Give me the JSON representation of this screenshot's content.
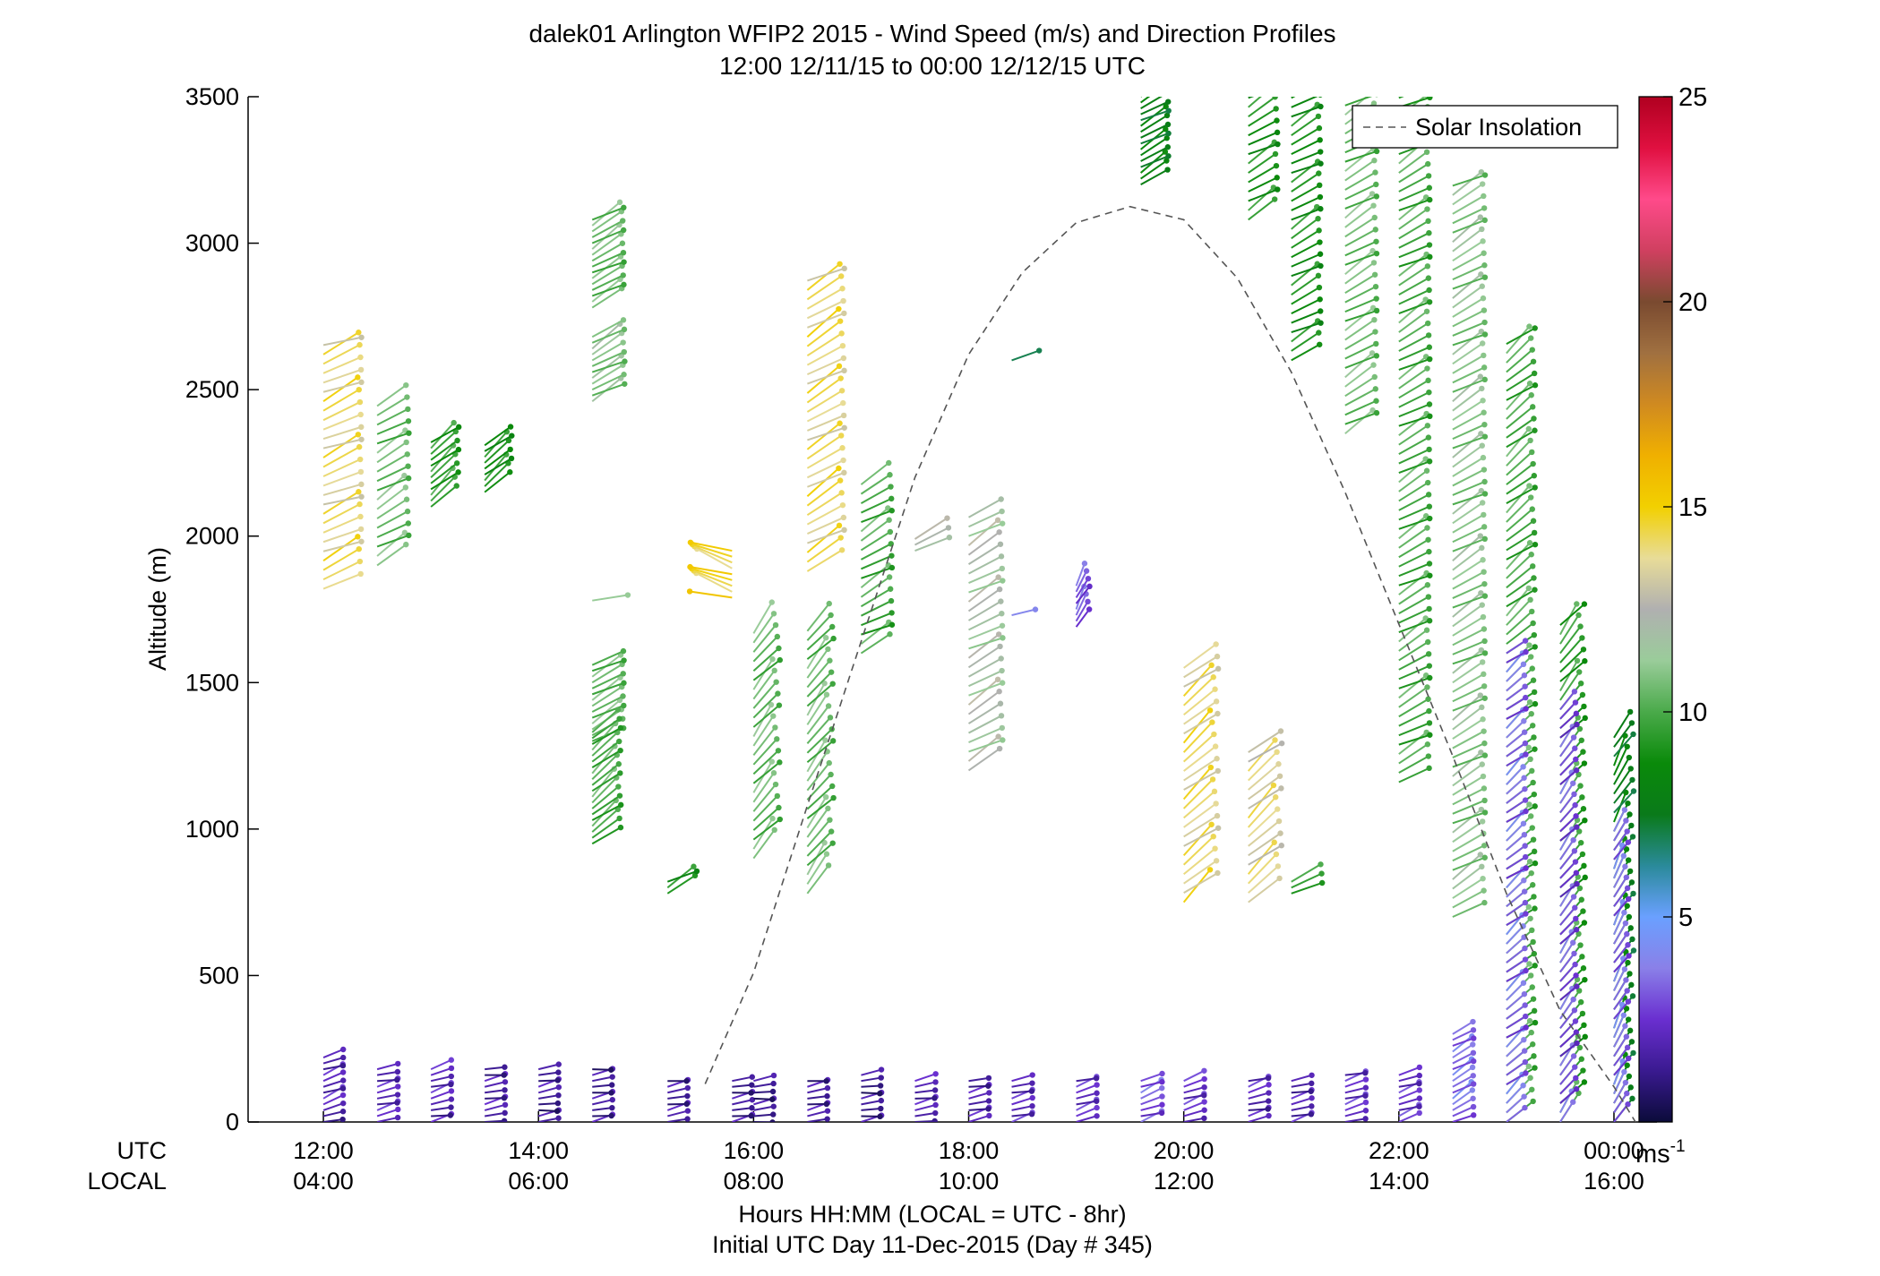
{
  "window": {
    "title_line1": "dalek01 Arlington WFIP2 2015 - Wind Speed (m/s) and Direction Profiles",
    "title_line2": "12:00 12/11/15 to 00:00 12/12/15  UTC"
  },
  "axes": {
    "ylabel": "Altitude (m)",
    "row_label_utc": "UTC",
    "row_label_local": "LOCAL",
    "xlabel": "Hours HH:MM  (LOCAL = UTC - 8hr)",
    "xsub": "Initial UTC Day 11-Dec-2015 (Day # 345)",
    "yticks": [
      "0",
      "500",
      "1000",
      "1500",
      "2000",
      "2500",
      "3000",
      "3500"
    ],
    "utc_ticks": [
      "12:00",
      "14:00",
      "16:00",
      "18:00",
      "20:00",
      "22:00",
      "00:00"
    ],
    "local_ticks": [
      "04:00",
      "06:00",
      "08:00",
      "10:00",
      "12:00",
      "14:00",
      "16:00"
    ]
  },
  "legend": {
    "label": "Solar Insolation"
  },
  "colorbar": {
    "ticks": [
      "5",
      "10",
      "15",
      "20",
      "25"
    ],
    "unit": "ms",
    "unit_sup": "-1"
  },
  "chart_data": {
    "type": "wind-barb-profile",
    "title": "dalek01 Arlington WFIP2 2015 - Wind Speed (m/s) and Direction Profiles",
    "subtitle": "12:00 12/11/15 to 00:00 12/12/15  UTC",
    "xlabel": "Hours HH:MM  (LOCAL = UTC - 8hr)",
    "ylabel": "Altitude (m)",
    "x_units": "hours UTC since 12:00 12/11/15",
    "xlim": [
      -0.7,
      12.4
    ],
    "ylim": [
      0,
      3500
    ],
    "colorbar_range": [
      0,
      25
    ],
    "colorbar_label": "ms-1",
    "colormap": [
      "#0b0b3a",
      "#3a1a90",
      "#6a2fd0",
      "#8a80e8",
      "#6aa0ff",
      "#2a8a9a",
      "#0a7a1a",
      "#0a8a0a",
      "#4aaa4a",
      "#9acc9a",
      "#b0b0b0",
      "#e8dc98",
      "#f2d000",
      "#f0b000",
      "#d08a20",
      "#a07040",
      "#7a4a30",
      "#d04060",
      "#ff4a8a",
      "#e01040",
      "#b00020"
    ],
    "solar_insolation": {
      "style": "dashed",
      "color": "#555555",
      "x": [
        3.55,
        4.0,
        4.5,
        5.0,
        5.5,
        6.0,
        6.5,
        7.0,
        7.5,
        8.0,
        8.5,
        9.0,
        9.5,
        10.0,
        10.5,
        11.0,
        11.5,
        12.0,
        12.2
      ],
      "y": [
        130,
        510,
        1080,
        1640,
        2200,
        2620,
        2900,
        3070,
        3125,
        3080,
        2880,
        2560,
        2150,
        1700,
        1250,
        780,
        380,
        120,
        0
      ]
    },
    "profiles": [
      {
        "t": 0.0,
        "segments": [
          [
            1820,
            2680,
            24,
            14.0
          ],
          [
            0,
            220,
            20,
            2.0
          ]
        ]
      },
      {
        "t": 0.5,
        "segments": [
          [
            1900,
            2460,
            30,
            10.5
          ],
          [
            0,
            180,
            15,
            2.2
          ]
        ]
      },
      {
        "t": 1.0,
        "segments": [
          [
            2100,
            2320,
            40,
            9.5
          ],
          [
            0,
            180,
            15,
            2.0
          ]
        ]
      },
      {
        "t": 1.5,
        "segments": [
          [
            2150,
            2320,
            40,
            9.0
          ],
          [
            0,
            180,
            12,
            1.8
          ]
        ]
      },
      {
        "t": 2.0,
        "segments": [
          [
            0,
            180,
            10,
            1.5
          ]
        ]
      },
      {
        "t": 2.5,
        "segments": [
          [
            2780,
            3080,
            30,
            10.5
          ],
          [
            2460,
            2690,
            30,
            11.0
          ],
          [
            1780,
            1780,
            0,
            10.5
          ],
          [
            1300,
            1570,
            30,
            10.5
          ],
          [
            950,
            1330,
            40,
            10.0
          ],
          [
            0,
            180,
            10,
            1.5
          ]
        ]
      },
      {
        "t": 3.2,
        "segments": [
          [
            780,
            830,
            30,
            9.0
          ],
          [
            0,
            150,
            10,
            1.5
          ]
        ]
      },
      {
        "t": 3.8,
        "segments": [
          [
            1790,
            1960,
            160,
            14.5
          ],
          [
            0,
            150,
            10,
            1.5
          ]
        ]
      },
      {
        "t": 4.0,
        "segments": [
          [
            900,
            1680,
            50,
            10.5
          ],
          [
            0,
            150,
            10,
            1.5
          ]
        ]
      },
      {
        "t": 4.5,
        "segments": [
          [
            1880,
            2880,
            30,
            14.0
          ],
          [
            780,
            1700,
            50,
            10.5
          ],
          [
            0,
            150,
            10,
            1.5
          ]
        ]
      },
      {
        "t": 5.0,
        "segments": [
          [
            1600,
            2200,
            30,
            10.0
          ],
          [
            0,
            160,
            10,
            1.5
          ]
        ]
      },
      {
        "t": 5.5,
        "segments": [
          [
            1950,
            2000,
            30,
            12.5
          ],
          [
            0,
            150,
            10,
            1.8
          ]
        ]
      },
      {
        "t": 6.0,
        "segments": [
          [
            1200,
            2090,
            30,
            12.0
          ],
          [
            0,
            150,
            15,
            2.0
          ]
        ]
      },
      {
        "t": 6.4,
        "segments": [
          [
            2600,
            2600,
            20,
            7.0
          ],
          [
            1730,
            1730,
            20,
            4.5
          ],
          [
            0,
            150,
            15,
            2.2
          ]
        ]
      },
      {
        "t": 7.0,
        "segments": [
          [
            1690,
            1840,
            60,
            3.0
          ],
          [
            0,
            150,
            20,
            2.5
          ]
        ]
      },
      {
        "t": 7.6,
        "segments": [
          [
            3200,
            3500,
            30,
            8.0
          ],
          [
            0,
            150,
            20,
            3.0
          ]
        ]
      },
      {
        "t": 8.0,
        "segments": [
          [
            750,
            1570,
            40,
            14.0
          ],
          [
            0,
            150,
            20,
            2.5
          ]
        ]
      },
      {
        "t": 8.6,
        "segments": [
          [
            3080,
            3500,
            30,
            9.0
          ],
          [
            750,
            1290,
            40,
            13.5
          ],
          [
            0,
            150,
            15,
            2.0
          ]
        ]
      },
      {
        "t": 9.0,
        "segments": [
          [
            2600,
            3500,
            30,
            9.0
          ],
          [
            780,
            830,
            30,
            10.0
          ],
          [
            0,
            150,
            15,
            2.0
          ]
        ]
      },
      {
        "t": 9.5,
        "segments": [
          [
            2350,
            3500,
            30,
            10.5
          ],
          [
            0,
            160,
            15,
            2.2
          ]
        ]
      },
      {
        "t": 10.0,
        "segments": [
          [
            1160,
            3500,
            30,
            10.0
          ],
          [
            0,
            160,
            20,
            2.5
          ]
        ]
      },
      {
        "t": 10.5,
        "segments": [
          [
            700,
            3220,
            30,
            11.0
          ],
          [
            0,
            300,
            30,
            3.5
          ]
        ]
      },
      {
        "t": 11.0,
        "segments": [
          [
            0,
            2680,
            40,
            10.0
          ],
          [
            0,
            1600,
            40,
            3.5
          ]
        ]
      },
      {
        "t": 11.5,
        "segments": [
          [
            0,
            1710,
            50,
            9.5
          ],
          [
            0,
            1420,
            50,
            3.0
          ]
        ]
      },
      {
        "t": 12.0,
        "segments": [
          [
            0,
            1330,
            60,
            8.0
          ],
          [
            0,
            1000,
            60,
            3.5
          ]
        ]
      }
    ]
  }
}
